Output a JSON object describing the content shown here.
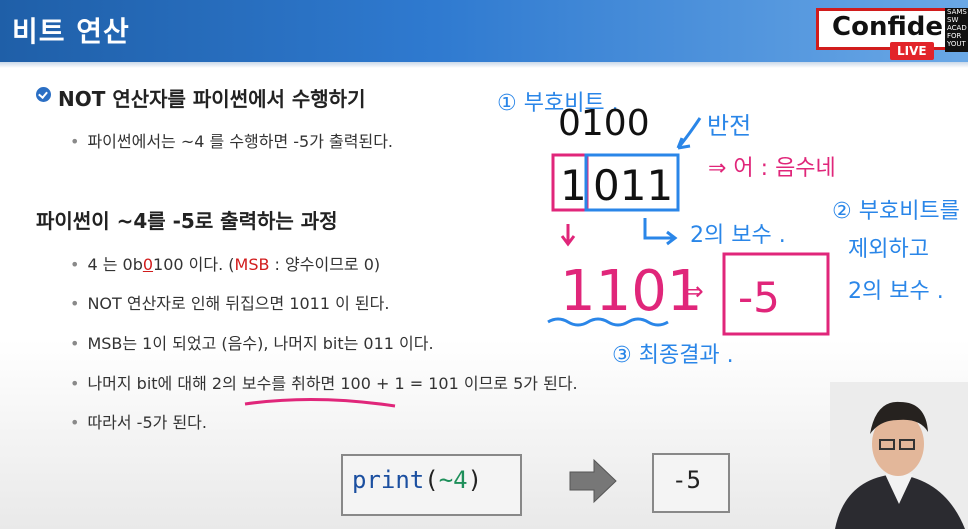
{
  "header": {
    "title": "비트 연산",
    "badge_text": "Confide",
    "live_label": "LIVE",
    "logo_lines": [
      "SAMS",
      "SW",
      "ACAD",
      "FOR",
      "YOUT"
    ]
  },
  "section1": {
    "title": "NOT 연산자를 파이썬에서 수행하기",
    "bullets": [
      "파이썬에서는 ~4 를 수행하면 -5가 출력된다."
    ]
  },
  "section2": {
    "title": "파이썬이 ~4를 -5로 출력하는 과정",
    "bullet1": {
      "pre": "4 는 0b",
      "red_digit": "0",
      "post": "100 이다. (",
      "msb": "MSB",
      "tail": " : 양수이므로 0)"
    },
    "bullet2": "NOT 연산자로 인해 뒤집으면 1011 이 된다.",
    "bullet3": "MSB는 1이 되었고 (음수), 나머지 bit는 011 이다.",
    "bullet4": "나머지 bit에 대해 2의 보수를 취하면 100 + 1 = 101 이므로 5가 된다.",
    "bullet5": "따라서 -5가 된다."
  },
  "code": {
    "func": "print",
    "open": "(",
    "expr": "~4",
    "close": ")"
  },
  "result": "-5",
  "annotations": {
    "step1": "① 부호비트 .",
    "binary_original": "0100",
    "invert": "반전",
    "flipped_sign": "1",
    "flipped_rest": "011",
    "negative_note": "⇒ 어 : 음수네",
    "twos_complement": "2의 보수 .",
    "step2_line1": "② 부호비트를",
    "step2_line2": "제외하고",
    "step2_line3": "2의 보수 .",
    "binary_result": "1101",
    "arrow": "⇒",
    "final_value": "-5",
    "step3": "③ 최종결과 ."
  },
  "colors": {
    "header_blue": "#2f7ad0",
    "ink_blue": "#2a86e8",
    "ink_pink": "#e0267a",
    "accent_red": "#d11c1c"
  }
}
